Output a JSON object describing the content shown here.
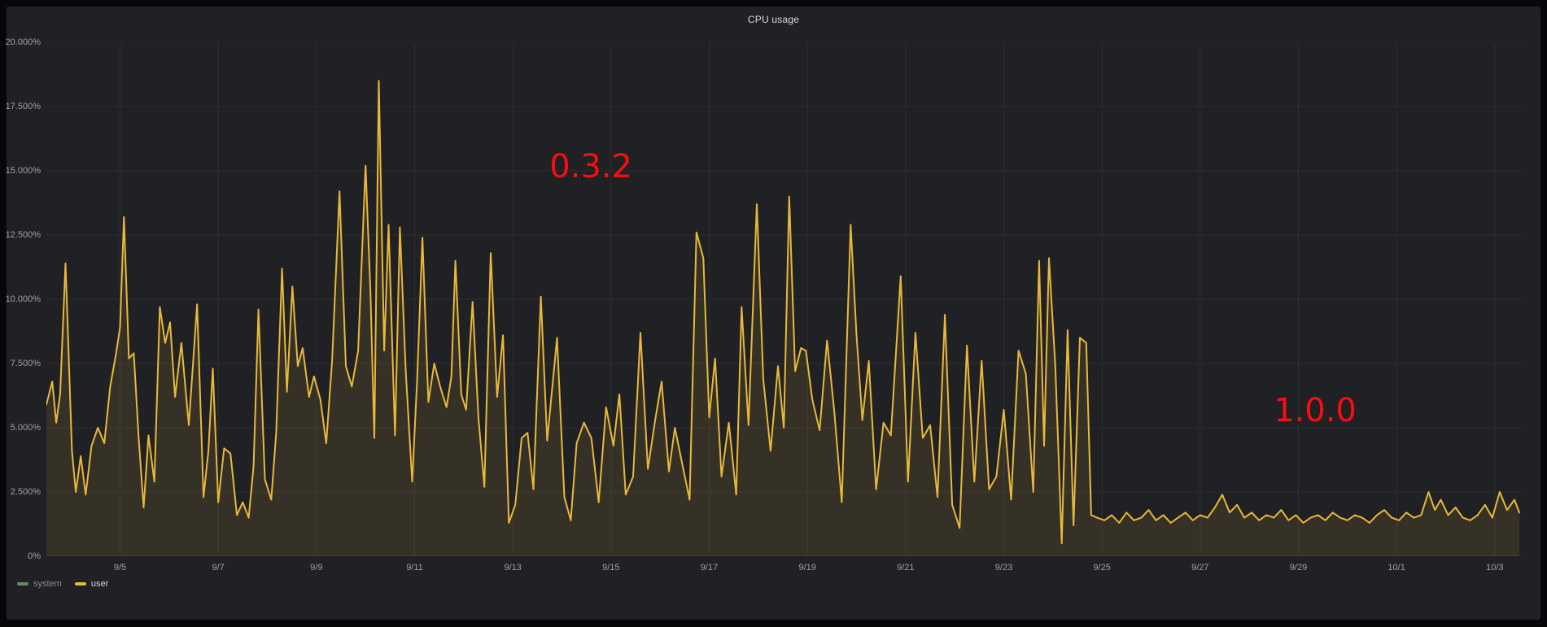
{
  "panel": {
    "title": "CPU usage"
  },
  "chart_data": {
    "type": "line",
    "title": "CPU usage",
    "xlabel": "",
    "ylabel": "",
    "grid": true,
    "legend_position": "bottom-left",
    "x_range_days": [
      -0.5,
      29.55
    ],
    "ylim": [
      0,
      20
    ],
    "y_unit": "%",
    "x_ticks": [
      {
        "t": 1,
        "label": "9/5"
      },
      {
        "t": 3,
        "label": "9/7"
      },
      {
        "t": 5,
        "label": "9/9"
      },
      {
        "t": 7,
        "label": "9/11"
      },
      {
        "t": 9,
        "label": "9/13"
      },
      {
        "t": 11,
        "label": "9/15"
      },
      {
        "t": 13,
        "label": "9/17"
      },
      {
        "t": 15,
        "label": "9/19"
      },
      {
        "t": 17,
        "label": "9/21"
      },
      {
        "t": 19,
        "label": "9/23"
      },
      {
        "t": 21,
        "label": "9/25"
      },
      {
        "t": 23,
        "label": "9/27"
      },
      {
        "t": 25,
        "label": "9/29"
      },
      {
        "t": 27,
        "label": "10/1"
      },
      {
        "t": 29,
        "label": "10/3"
      }
    ],
    "y_ticks": [
      {
        "v": 0,
        "label": "0%"
      },
      {
        "v": 2.5,
        "label": "2.500%"
      },
      {
        "v": 5,
        "label": "5.000%"
      },
      {
        "v": 7.5,
        "label": "7.500%"
      },
      {
        "v": 10,
        "label": "10.000%"
      },
      {
        "v": 12.5,
        "label": "12.500%"
      },
      {
        "v": 15,
        "label": "15.000%"
      },
      {
        "v": 17.5,
        "label": "17.500%"
      },
      {
        "v": 20,
        "label": "20.000%"
      }
    ],
    "annotations": [
      {
        "label": "0.3.2",
        "t": 10.59,
        "v": 15.16,
        "color": "#fb0d0d"
      },
      {
        "label": "1.0.0",
        "t": 25.34,
        "v": 5.66,
        "color": "#fb0d0d"
      }
    ],
    "colors": {
      "line_user": "#eab839",
      "line_system": "#7eb26d",
      "grid": "#2b2d31",
      "axis": "#3a3c40",
      "tick_text": "#9fa1a4",
      "legend_dimmed_text": "#8a8b8e",
      "legend_text": "#d8d9da",
      "panel_bg": "#1f2125"
    },
    "series": [
      {
        "name": "system",
        "color": "#7eb26d",
        "hidden": true,
        "points": []
      },
      {
        "name": "user",
        "color": "#eab839",
        "hidden": false,
        "fill_opacity": 0.11,
        "points": [
          [
            -0.5,
            5.9
          ],
          [
            -0.38,
            6.8
          ],
          [
            -0.3,
            5.2
          ],
          [
            -0.22,
            6.3
          ],
          [
            -0.11,
            11.4
          ],
          [
            0.02,
            4.1
          ],
          [
            0.1,
            2.5
          ],
          [
            0.2,
            3.9
          ],
          [
            0.3,
            2.4
          ],
          [
            0.42,
            4.3
          ],
          [
            0.55,
            5.0
          ],
          [
            0.68,
            4.4
          ],
          [
            0.8,
            6.6
          ],
          [
            0.92,
            7.9
          ],
          [
            1.0,
            8.9
          ],
          [
            1.08,
            13.2
          ],
          [
            1.18,
            7.7
          ],
          [
            1.28,
            7.9
          ],
          [
            1.38,
            4.6
          ],
          [
            1.48,
            1.9
          ],
          [
            1.58,
            4.7
          ],
          [
            1.7,
            2.9
          ],
          [
            1.81,
            9.7
          ],
          [
            1.92,
            8.3
          ],
          [
            2.02,
            9.1
          ],
          [
            2.12,
            6.2
          ],
          [
            2.25,
            8.3
          ],
          [
            2.4,
            5.1
          ],
          [
            2.57,
            9.8
          ],
          [
            2.7,
            2.3
          ],
          [
            2.8,
            4.1
          ],
          [
            2.89,
            7.3
          ],
          [
            3.0,
            2.1
          ],
          [
            3.12,
            4.2
          ],
          [
            3.25,
            4.0
          ],
          [
            3.38,
            1.6
          ],
          [
            3.5,
            2.1
          ],
          [
            3.62,
            1.5
          ],
          [
            3.72,
            3.5
          ],
          [
            3.82,
            9.6
          ],
          [
            3.95,
            3.0
          ],
          [
            4.08,
            2.2
          ],
          [
            4.18,
            4.8
          ],
          [
            4.3,
            11.2
          ],
          [
            4.4,
            6.4
          ],
          [
            4.51,
            10.5
          ],
          [
            4.62,
            7.4
          ],
          [
            4.72,
            8.1
          ],
          [
            4.85,
            6.2
          ],
          [
            4.95,
            7.0
          ],
          [
            5.08,
            6.1
          ],
          [
            5.2,
            4.4
          ],
          [
            5.32,
            7.6
          ],
          [
            5.47,
            14.2
          ],
          [
            5.6,
            7.4
          ],
          [
            5.72,
            6.6
          ],
          [
            5.85,
            8.0
          ],
          [
            6.0,
            15.2
          ],
          [
            6.1,
            10.3
          ],
          [
            6.18,
            4.6
          ],
          [
            6.27,
            18.5
          ],
          [
            6.38,
            8.0
          ],
          [
            6.47,
            12.9
          ],
          [
            6.6,
            4.7
          ],
          [
            6.7,
            12.8
          ],
          [
            6.82,
            7.2
          ],
          [
            6.95,
            2.9
          ],
          [
            7.05,
            6.8
          ],
          [
            7.16,
            12.4
          ],
          [
            7.28,
            6.0
          ],
          [
            7.4,
            7.5
          ],
          [
            7.52,
            6.6
          ],
          [
            7.65,
            5.8
          ],
          [
            7.75,
            7.0
          ],
          [
            7.83,
            11.5
          ],
          [
            7.95,
            6.3
          ],
          [
            8.05,
            5.7
          ],
          [
            8.18,
            9.9
          ],
          [
            8.3,
            5.4
          ],
          [
            8.42,
            2.7
          ],
          [
            8.55,
            11.8
          ],
          [
            8.68,
            6.2
          ],
          [
            8.8,
            8.6
          ],
          [
            8.92,
            1.3
          ],
          [
            9.05,
            2.0
          ],
          [
            9.18,
            4.6
          ],
          [
            9.3,
            4.8
          ],
          [
            9.42,
            2.6
          ],
          [
            9.57,
            10.1
          ],
          [
            9.7,
            4.5
          ],
          [
            9.9,
            8.5
          ],
          [
            10.05,
            2.3
          ],
          [
            10.18,
            1.4
          ],
          [
            10.3,
            4.4
          ],
          [
            10.45,
            5.2
          ],
          [
            10.6,
            4.6
          ],
          [
            10.75,
            2.1
          ],
          [
            10.9,
            5.8
          ],
          [
            11.05,
            4.3
          ],
          [
            11.17,
            6.3
          ],
          [
            11.3,
            2.4
          ],
          [
            11.45,
            3.1
          ],
          [
            11.6,
            8.7
          ],
          [
            11.75,
            3.4
          ],
          [
            11.9,
            5.3
          ],
          [
            12.03,
            6.8
          ],
          [
            12.18,
            3.3
          ],
          [
            12.3,
            5.0
          ],
          [
            12.45,
            3.6
          ],
          [
            12.6,
            2.2
          ],
          [
            12.74,
            12.6
          ],
          [
            12.88,
            11.6
          ],
          [
            13.0,
            5.4
          ],
          [
            13.12,
            7.7
          ],
          [
            13.25,
            3.1
          ],
          [
            13.4,
            5.2
          ],
          [
            13.55,
            2.4
          ],
          [
            13.66,
            9.7
          ],
          [
            13.8,
            5.1
          ],
          [
            13.97,
            13.7
          ],
          [
            14.1,
            6.9
          ],
          [
            14.25,
            4.1
          ],
          [
            14.4,
            7.4
          ],
          [
            14.52,
            5.0
          ],
          [
            14.63,
            14.0
          ],
          [
            14.75,
            7.2
          ],
          [
            14.87,
            8.1
          ],
          [
            14.97,
            8.0
          ],
          [
            15.1,
            6.1
          ],
          [
            15.25,
            4.9
          ],
          [
            15.4,
            8.4
          ],
          [
            15.55,
            5.6
          ],
          [
            15.7,
            2.1
          ],
          [
            15.88,
            12.9
          ],
          [
            16.0,
            8.6
          ],
          [
            16.12,
            5.3
          ],
          [
            16.25,
            7.6
          ],
          [
            16.4,
            2.6
          ],
          [
            16.55,
            5.2
          ],
          [
            16.7,
            4.7
          ],
          [
            16.9,
            10.9
          ],
          [
            17.05,
            2.9
          ],
          [
            17.2,
            8.7
          ],
          [
            17.35,
            4.6
          ],
          [
            17.5,
            5.1
          ],
          [
            17.65,
            2.3
          ],
          [
            17.8,
            9.4
          ],
          [
            17.95,
            2.0
          ],
          [
            18.1,
            1.1
          ],
          [
            18.25,
            8.2
          ],
          [
            18.4,
            2.9
          ],
          [
            18.55,
            7.6
          ],
          [
            18.7,
            2.6
          ],
          [
            18.85,
            3.1
          ],
          [
            19.0,
            5.7
          ],
          [
            19.15,
            2.2
          ],
          [
            19.3,
            8.0
          ],
          [
            19.45,
            7.1
          ],
          [
            19.6,
            2.5
          ],
          [
            19.72,
            11.5
          ],
          [
            19.82,
            4.3
          ],
          [
            19.92,
            11.6
          ],
          [
            20.05,
            7.4
          ],
          [
            20.18,
            0.5
          ],
          [
            20.3,
            8.8
          ],
          [
            20.42,
            1.2
          ],
          [
            20.55,
            8.5
          ],
          [
            20.68,
            8.3
          ],
          [
            20.78,
            1.6
          ],
          [
            20.9,
            1.5
          ],
          [
            21.05,
            1.4
          ],
          [
            21.2,
            1.6
          ],
          [
            21.35,
            1.3
          ],
          [
            21.5,
            1.7
          ],
          [
            21.65,
            1.4
          ],
          [
            21.8,
            1.5
          ],
          [
            21.95,
            1.8
          ],
          [
            22.1,
            1.4
          ],
          [
            22.25,
            1.6
          ],
          [
            22.4,
            1.3
          ],
          [
            22.55,
            1.5
          ],
          [
            22.7,
            1.7
          ],
          [
            22.85,
            1.4
          ],
          [
            23.0,
            1.6
          ],
          [
            23.15,
            1.5
          ],
          [
            23.3,
            1.9
          ],
          [
            23.45,
            2.4
          ],
          [
            23.6,
            1.7
          ],
          [
            23.75,
            2.0
          ],
          [
            23.9,
            1.5
          ],
          [
            24.05,
            1.7
          ],
          [
            24.2,
            1.4
          ],
          [
            24.35,
            1.6
          ],
          [
            24.5,
            1.5
          ],
          [
            24.65,
            1.8
          ],
          [
            24.8,
            1.4
          ],
          [
            24.95,
            1.6
          ],
          [
            25.1,
            1.3
          ],
          [
            25.25,
            1.5
          ],
          [
            25.4,
            1.6
          ],
          [
            25.55,
            1.4
          ],
          [
            25.7,
            1.7
          ],
          [
            25.85,
            1.5
          ],
          [
            26.0,
            1.4
          ],
          [
            26.15,
            1.6
          ],
          [
            26.3,
            1.5
          ],
          [
            26.45,
            1.3
          ],
          [
            26.6,
            1.6
          ],
          [
            26.75,
            1.8
          ],
          [
            26.9,
            1.5
          ],
          [
            27.05,
            1.4
          ],
          [
            27.2,
            1.7
          ],
          [
            27.35,
            1.5
          ],
          [
            27.5,
            1.6
          ],
          [
            27.65,
            2.5
          ],
          [
            27.78,
            1.8
          ],
          [
            27.9,
            2.2
          ],
          [
            28.05,
            1.6
          ],
          [
            28.2,
            1.9
          ],
          [
            28.35,
            1.5
          ],
          [
            28.5,
            1.4
          ],
          [
            28.65,
            1.6
          ],
          [
            28.8,
            2.0
          ],
          [
            28.95,
            1.5
          ],
          [
            29.1,
            2.5
          ],
          [
            29.25,
            1.8
          ],
          [
            29.4,
            2.2
          ],
          [
            29.5,
            1.7
          ]
        ]
      }
    ]
  }
}
